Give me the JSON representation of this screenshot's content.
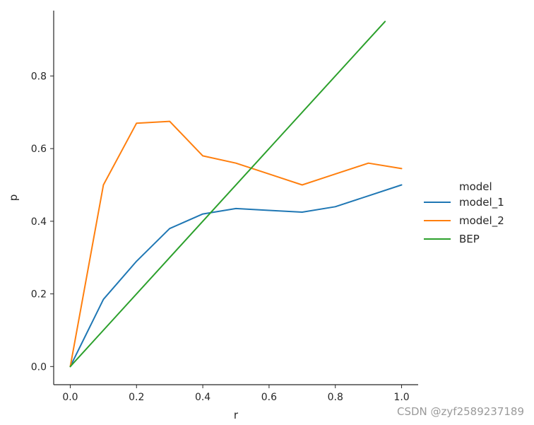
{
  "chart_data": {
    "type": "line",
    "xlabel": "r",
    "ylabel": "p",
    "xlim": [
      -0.05,
      1.05
    ],
    "ylim": [
      -0.05,
      0.98
    ],
    "xticks": [
      "0.0",
      "0.2",
      "0.4",
      "0.6",
      "0.8",
      "1.0"
    ],
    "yticks": [
      "0.0",
      "0.2",
      "0.4",
      "0.6",
      "0.8"
    ],
    "grid": false,
    "legend_title": "model",
    "legend_placement": "right",
    "series": [
      {
        "name": "model_1",
        "color": "#1f77b4",
        "x": [
          0.0,
          0.1,
          0.2,
          0.3,
          0.4,
          0.5,
          0.6,
          0.7,
          0.8,
          0.9,
          1.0
        ],
        "y": [
          0.0,
          0.185,
          0.29,
          0.38,
          0.42,
          0.435,
          0.43,
          0.425,
          0.44,
          0.47,
          0.5
        ]
      },
      {
        "name": "model_2",
        "color": "#ff7f0e",
        "x": [
          0.0,
          0.1,
          0.2,
          0.3,
          0.4,
          0.5,
          0.6,
          0.7,
          0.8,
          0.9,
          1.0
        ],
        "y": [
          0.0,
          0.5,
          0.67,
          0.675,
          0.58,
          0.56,
          0.53,
          0.5,
          0.53,
          0.56,
          0.545
        ]
      },
      {
        "name": "BEP",
        "color": "#2ca02c",
        "x": [
          0.0,
          0.95
        ],
        "y": [
          0.0,
          0.95
        ]
      }
    ]
  },
  "watermark": "CSDN @zyf2589237189"
}
